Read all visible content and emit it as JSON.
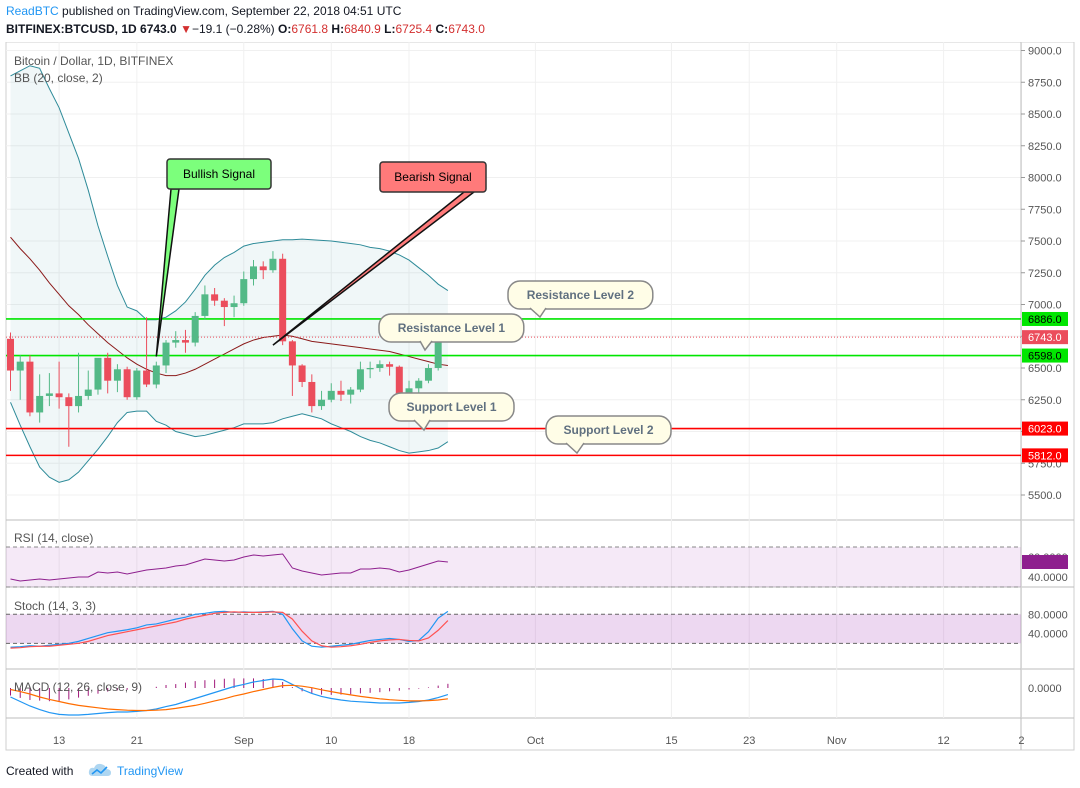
{
  "header": {
    "publisher": "ReadBTC",
    "published_text": "published on TradingView.com, September 22, 2018 04:51 UTC",
    "symbol": "BITFINEX:BTCUSD, 1D",
    "last": "6743.0",
    "change_arrow": "▼",
    "change": "−19.1 (−0.28%)",
    "o_label": "O:",
    "o_value": "6761.8",
    "h_label": "H:",
    "h_value": "6840.9",
    "l_label": "L:",
    "l_value": "6725.4",
    "c_label": "C:",
    "c_value": "6743.0"
  },
  "footer": {
    "created_with": "Created with",
    "brand": "TradingView"
  },
  "colors": {
    "up": "#53b987",
    "down": "#eb4d5c",
    "support": "#ff0000",
    "resistance": "#00e600",
    "bb_band": "#2e8b99",
    "bb_basis": "#8b1a1a",
    "rsi": "#8e1f8e",
    "stoch_k": "#2196f3",
    "stoch_d": "#ff5252",
    "macd": "#2196f3",
    "signal": "#ff6d00"
  },
  "chart_data": [
    {
      "type": "candlestick",
      "title": "Bitcoin / Dollar, 1D, BITFINEX",
      "indicator": "BB (20, close, 2)",
      "ylim": [
        5300,
        9100
      ],
      "y_ticks": [
        "9000.0",
        "8750.0",
        "8500.0",
        "8250.0",
        "8000.0",
        "7750.0",
        "7500.0",
        "7250.0",
        "7000.0",
        "6750.0",
        "6500.0",
        "6250.0",
        "6000.0",
        "5750.0",
        "5500.0"
      ],
      "x_ticks": [
        {
          "label": "13",
          "day": 13
        },
        {
          "label": "21",
          "day": 21
        },
        {
          "label": "Sep",
          "day": 32
        },
        {
          "label": "10",
          "day": 41
        },
        {
          "label": "18",
          "day": 49
        },
        {
          "label": "Oct",
          "day": 62
        },
        {
          "label": "15",
          "day": 76
        },
        {
          "label": "23",
          "day": 84
        },
        {
          "label": "Nov",
          "day": 93
        },
        {
          "label": "12",
          "day": 104
        },
        {
          "label": "2",
          "day": 112
        }
      ],
      "candles": [
        {
          "date": "Aug 8",
          "o": 6730,
          "h": 6780,
          "l": 6320,
          "c": 6480
        },
        {
          "date": "Aug 9",
          "o": 6480,
          "h": 6600,
          "l": 6250,
          "c": 6550
        },
        {
          "date": "Aug 10",
          "o": 6550,
          "h": 6600,
          "l": 6120,
          "c": 6150
        },
        {
          "date": "Aug 11",
          "o": 6150,
          "h": 6450,
          "l": 6070,
          "c": 6280
        },
        {
          "date": "Aug 12",
          "o": 6280,
          "h": 6460,
          "l": 6200,
          "c": 6300
        },
        {
          "date": "Aug 13",
          "o": 6300,
          "h": 6550,
          "l": 6180,
          "c": 6270
        },
        {
          "date": "Aug 14",
          "o": 6270,
          "h": 6300,
          "l": 5880,
          "c": 6200
        },
        {
          "date": "Aug 15",
          "o": 6200,
          "h": 6620,
          "l": 6150,
          "c": 6280
        },
        {
          "date": "Aug 16",
          "o": 6280,
          "h": 6480,
          "l": 6250,
          "c": 6330
        },
        {
          "date": "Aug 17",
          "o": 6330,
          "h": 6550,
          "l": 6290,
          "c": 6580
        },
        {
          "date": "Aug 18",
          "o": 6580,
          "h": 6620,
          "l": 6300,
          "c": 6400
        },
        {
          "date": "Aug 19",
          "o": 6400,
          "h": 6530,
          "l": 6310,
          "c": 6490
        },
        {
          "date": "Aug 20",
          "o": 6490,
          "h": 6510,
          "l": 6250,
          "c": 6270
        },
        {
          "date": "Aug 21",
          "o": 6270,
          "h": 6500,
          "l": 6250,
          "c": 6480
        },
        {
          "date": "Aug 22",
          "o": 6480,
          "h": 6900,
          "l": 6350,
          "c": 6370
        },
        {
          "date": "Aug 23",
          "o": 6370,
          "h": 6550,
          "l": 6340,
          "c": 6520
        },
        {
          "date": "Aug 24",
          "o": 6520,
          "h": 6720,
          "l": 6460,
          "c": 6700
        },
        {
          "date": "Aug 25",
          "o": 6700,
          "h": 6790,
          "l": 6660,
          "c": 6720
        },
        {
          "date": "Aug 26",
          "o": 6720,
          "h": 6800,
          "l": 6620,
          "c": 6700
        },
        {
          "date": "Aug 27",
          "o": 6700,
          "h": 6940,
          "l": 6670,
          "c": 6910
        },
        {
          "date": "Aug 28",
          "o": 6910,
          "h": 7150,
          "l": 6880,
          "c": 7080
        },
        {
          "date": "Aug 29",
          "o": 7080,
          "h": 7130,
          "l": 6990,
          "c": 7030
        },
        {
          "date": "Aug 30",
          "o": 7030,
          "h": 7050,
          "l": 6830,
          "c": 6980
        },
        {
          "date": "Aug 31",
          "o": 6980,
          "h": 7070,
          "l": 6900,
          "c": 7010
        },
        {
          "date": "Sep 1",
          "o": 7010,
          "h": 7260,
          "l": 6990,
          "c": 7200
        },
        {
          "date": "Sep 2",
          "o": 7200,
          "h": 7350,
          "l": 7150,
          "c": 7300
        },
        {
          "date": "Sep 3",
          "o": 7300,
          "h": 7340,
          "l": 7200,
          "c": 7270
        },
        {
          "date": "Sep 4",
          "o": 7270,
          "h": 7420,
          "l": 7250,
          "c": 7360
        },
        {
          "date": "Sep 5",
          "o": 7360,
          "h": 7400,
          "l": 6680,
          "c": 6710
        },
        {
          "date": "Sep 6",
          "o": 6710,
          "h": 6720,
          "l": 6280,
          "c": 6520
        },
        {
          "date": "Sep 7",
          "o": 6520,
          "h": 6530,
          "l": 6350,
          "c": 6390
        },
        {
          "date": "Sep 8",
          "o": 6390,
          "h": 6450,
          "l": 6150,
          "c": 6200
        },
        {
          "date": "Sep 9",
          "o": 6200,
          "h": 6320,
          "l": 6170,
          "c": 6250
        },
        {
          "date": "Sep 10",
          "o": 6250,
          "h": 6380,
          "l": 6230,
          "c": 6320
        },
        {
          "date": "Sep 11",
          "o": 6320,
          "h": 6400,
          "l": 6240,
          "c": 6290
        },
        {
          "date": "Sep 12",
          "o": 6290,
          "h": 6350,
          "l": 6220,
          "c": 6330
        },
        {
          "date": "Sep 13",
          "o": 6330,
          "h": 6550,
          "l": 6310,
          "c": 6490
        },
        {
          "date": "Sep 14",
          "o": 6490,
          "h": 6550,
          "l": 6420,
          "c": 6500
        },
        {
          "date": "Sep 15",
          "o": 6500,
          "h": 6560,
          "l": 6470,
          "c": 6530
        },
        {
          "date": "Sep 16",
          "o": 6530,
          "h": 6550,
          "l": 6440,
          "c": 6510
        },
        {
          "date": "Sep 17",
          "o": 6510,
          "h": 6520,
          "l": 6240,
          "c": 6260
        },
        {
          "date": "Sep 18",
          "o": 6260,
          "h": 6400,
          "l": 6250,
          "c": 6340
        },
        {
          "date": "Sep 19",
          "o": 6340,
          "h": 6420,
          "l": 6120,
          "c": 6400
        },
        {
          "date": "Sep 20",
          "o": 6400,
          "h": 6530,
          "l": 6380,
          "c": 6500
        },
        {
          "date": "Sep 21",
          "o": 6500,
          "h": 6800,
          "l": 6480,
          "c": 6762
        },
        {
          "date": "Sep 22",
          "o": 6761.8,
          "h": 6840.9,
          "l": 6725.4,
          "c": 6743.0
        }
      ],
      "bb_upper": [
        8800,
        8840,
        8880,
        8860,
        8700,
        8550,
        8350,
        8150,
        7900,
        7620,
        7380,
        7150,
        6980,
        6950,
        6880,
        6880,
        6900,
        6950,
        7020,
        7120,
        7230,
        7310,
        7370,
        7410,
        7460,
        7480,
        7490,
        7500,
        7510,
        7510,
        7515,
        7510,
        7505,
        7500,
        7490,
        7480,
        7470,
        7450,
        7440,
        7420,
        7390,
        7350,
        7290,
        7230,
        7160,
        7110
      ],
      "bb_basis": [
        7530,
        7440,
        7360,
        7270,
        7170,
        7080,
        6990,
        6920,
        6840,
        6770,
        6700,
        6640,
        6580,
        6530,
        6490,
        6460,
        6440,
        6440,
        6460,
        6490,
        6530,
        6570,
        6610,
        6650,
        6690,
        6720,
        6740,
        6750,
        6760,
        6750,
        6730,
        6710,
        6700,
        6690,
        6680,
        6670,
        6660,
        6650,
        6640,
        6630,
        6610,
        6590,
        6570,
        6550,
        6530,
        6520
      ],
      "bb_lower": [
        6230,
        6050,
        5880,
        5720,
        5640,
        5600,
        5620,
        5680,
        5770,
        5860,
        5960,
        6070,
        6150,
        6160,
        6160,
        6080,
        6050,
        6000,
        5980,
        5960,
        5970,
        5990,
        6010,
        6030,
        6060,
        6060,
        6060,
        6070,
        6100,
        6120,
        6140,
        6120,
        6100,
        6060,
        6030,
        6000,
        5960,
        5930,
        5910,
        5880,
        5850,
        5830,
        5840,
        5850,
        5870,
        5920
      ],
      "horizontal_lines": [
        {
          "label": "6886.0",
          "value": 6886,
          "kind": "resistance"
        },
        {
          "label": "6598.0",
          "value": 6598,
          "kind": "resistance"
        },
        {
          "label": "6743.0",
          "value": 6743,
          "kind": "last"
        },
        {
          "label": "6023.0",
          "value": 6023,
          "kind": "support"
        },
        {
          "label": "5812.0",
          "value": 5812,
          "kind": "support"
        }
      ],
      "annotations": [
        {
          "name": "bullish-signal-callout",
          "text": "Bullish Signal",
          "day": 23,
          "price": 6590,
          "style": "bullish"
        },
        {
          "name": "bearish-signal-callout",
          "text": "Bearish Signal",
          "day": 35,
          "price": 6680,
          "style": "bearish"
        },
        {
          "name": "resistance-level-2-callout",
          "text": "Resistance Level 2",
          "day": 59,
          "price": 6900,
          "style": "note"
        },
        {
          "name": "resistance-level-1-callout",
          "text": "Resistance Level 1",
          "day": 50,
          "price": 6770,
          "style": "note"
        },
        {
          "name": "support-level-1-callout",
          "text": "Support Level 1",
          "day": 51,
          "price": 6030,
          "style": "note"
        },
        {
          "name": "support-level-2-callout",
          "text": "Support Level 2",
          "day": 72,
          "price": 5825,
          "style": "note"
        }
      ]
    },
    {
      "type": "line",
      "title": "RSI (14, close)",
      "ylim": [
        30,
        70
      ],
      "y_ticks": [
        "60.0000",
        "40.0000"
      ],
      "bands": [
        70,
        30
      ],
      "values": [
        38,
        36,
        37,
        38,
        37,
        38,
        39,
        40,
        40,
        45,
        44,
        45,
        43,
        45,
        47,
        48,
        49,
        51,
        52,
        55,
        58,
        57,
        56,
        57,
        60,
        62,
        61,
        62,
        63,
        49,
        46,
        44,
        42,
        43,
        44,
        44,
        48,
        48,
        49,
        48,
        45,
        47,
        50,
        53,
        56,
        55
      ]
    },
    {
      "type": "line",
      "title": "Stoch (14, 3, 3)",
      "ylim": [
        0,
        100
      ],
      "y_ticks": [
        "80.0000",
        "40.0000"
      ],
      "bands": [
        80,
        20
      ],
      "series": [
        {
          "values": [
            12,
            13,
            15,
            14,
            16,
            18,
            20,
            24,
            30,
            36,
            42,
            45,
            48,
            52,
            58,
            60,
            65,
            70,
            74,
            80,
            82,
            85,
            86,
            84,
            85,
            84,
            85,
            86,
            80,
            50,
            25,
            14,
            12,
            14,
            16,
            18,
            22,
            26,
            28,
            30,
            28,
            24,
            26,
            44,
            72,
            86
          ]
        },
        {
          "values": [
            10,
            11,
            13,
            14,
            14,
            16,
            18,
            20,
            24,
            30,
            36,
            40,
            44,
            48,
            52,
            56,
            60,
            64,
            70,
            74,
            78,
            82,
            84,
            85,
            84,
            84,
            84,
            85,
            84,
            70,
            45,
            25,
            15,
            12,
            13,
            15,
            18,
            22,
            25,
            27,
            28,
            26,
            25,
            31,
            47,
            67
          ]
        }
      ]
    },
    {
      "type": "line",
      "title": "MACD (12, 26, close, 9)",
      "ylim": [
        -1,
        1
      ],
      "y_ticks": [
        "0.0000"
      ],
      "series": [
        {
          "values": [
            -0.3,
            -0.45,
            -0.6,
            -0.72,
            -0.82,
            -0.88,
            -0.9,
            -0.9,
            -0.88,
            -0.85,
            -0.82,
            -0.8,
            -0.8,
            -0.78,
            -0.75,
            -0.7,
            -0.62,
            -0.55,
            -0.45,
            -0.35,
            -0.25,
            -0.15,
            -0.05,
            0.05,
            0.12,
            0.2,
            0.25,
            0.3,
            0.28,
            0.12,
            -0.05,
            -0.18,
            -0.28,
            -0.35,
            -0.4,
            -0.44,
            -0.46,
            -0.48,
            -0.5,
            -0.5,
            -0.5,
            -0.48,
            -0.45,
            -0.4,
            -0.32,
            -0.22
          ]
        },
        {
          "values": [
            -0.05,
            -0.12,
            -0.2,
            -0.3,
            -0.38,
            -0.45,
            -0.52,
            -0.58,
            -0.62,
            -0.66,
            -0.7,
            -0.72,
            -0.74,
            -0.75,
            -0.75,
            -0.74,
            -0.72,
            -0.68,
            -0.63,
            -0.58,
            -0.51,
            -0.43,
            -0.36,
            -0.27,
            -0.2,
            -0.12,
            -0.05,
            0.02,
            0.08,
            0.09,
            0.06,
            0.01,
            -0.06,
            -0.12,
            -0.18,
            -0.23,
            -0.28,
            -0.32,
            -0.36,
            -0.39,
            -0.41,
            -0.43,
            -0.43,
            -0.42,
            -0.4,
            -0.36
          ]
        }
      ],
      "histogram": [
        -0.25,
        -0.33,
        -0.4,
        -0.42,
        -0.44,
        -0.43,
        -0.38,
        -0.32,
        -0.26,
        -0.19,
        -0.12,
        -0.08,
        -0.06,
        -0.03,
        0.0,
        0.04,
        0.1,
        0.13,
        0.18,
        0.23,
        0.26,
        0.28,
        0.31,
        0.32,
        0.32,
        0.32,
        0.3,
        0.28,
        0.2,
        0.03,
        -0.11,
        -0.19,
        -0.22,
        -0.23,
        -0.22,
        -0.21,
        -0.18,
        -0.16,
        -0.14,
        -0.11,
        -0.09,
        -0.05,
        -0.02,
        0.02,
        0.08,
        0.14
      ]
    }
  ]
}
